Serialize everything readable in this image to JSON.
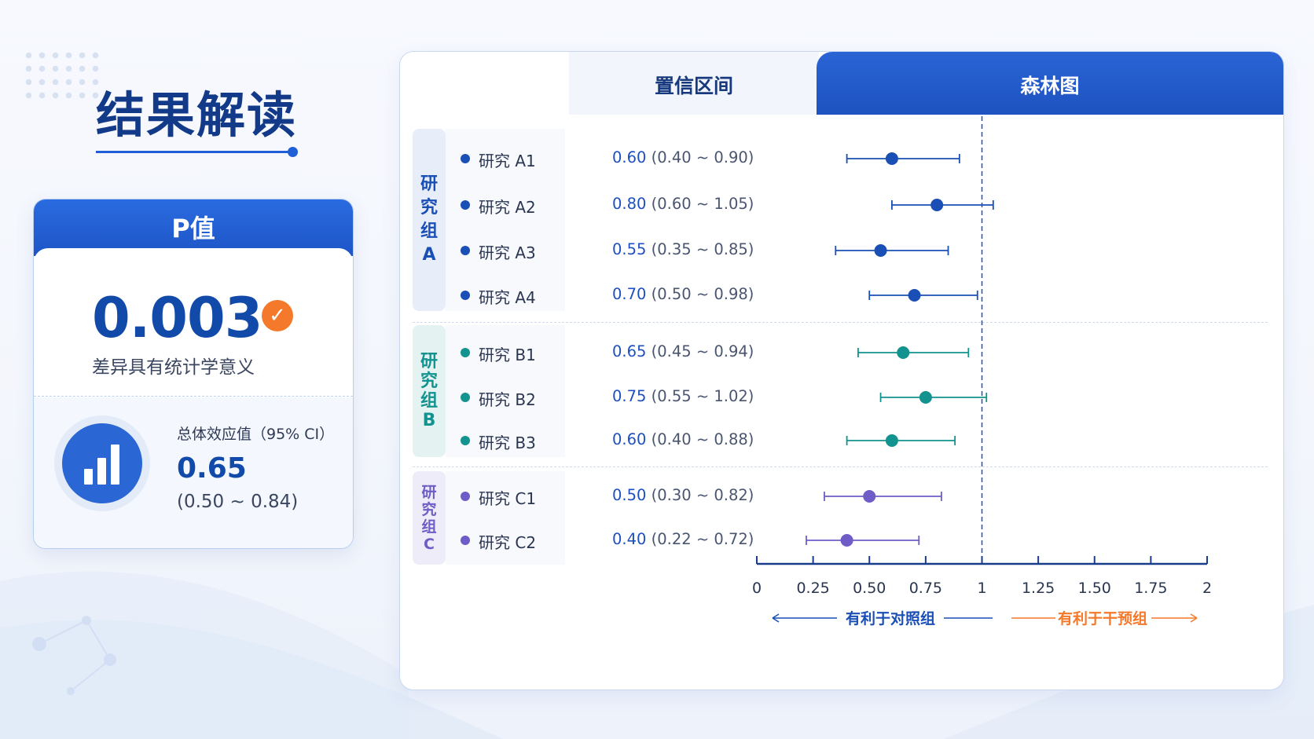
{
  "header": {
    "title": "结果解读"
  },
  "p_card": {
    "title": "P值",
    "p_value": "0.003",
    "significance": "差异具有统计学意义",
    "effect_label": "总体效应值（95% CI）",
    "effect_value": "0.65",
    "effect_ci": "(0.50 ~ 0.84)"
  },
  "tabs": {
    "ci": "置信区间",
    "forest": "森林图"
  },
  "groups": [
    {
      "label": "研究组A",
      "label_chars": [
        "研",
        "究",
        "组",
        "A"
      ],
      "color": "#1a4fb5",
      "bg": "#e8eef9",
      "studies": [
        {
          "name": "研究 A1",
          "estimate": "0.60",
          "ci_text": "(0.40 ~ 0.90)"
        },
        {
          "name": "研究 A2",
          "estimate": "0.80",
          "ci_text": "(0.60 ~ 1.05)"
        },
        {
          "name": "研究 A3",
          "estimate": "0.55",
          "ci_text": "(0.35 ~ 0.85)"
        },
        {
          "name": "研究 A4",
          "estimate": "0.70",
          "ci_text": "(0.50 ~ 0.98)"
        }
      ]
    },
    {
      "label": "研究组B",
      "label_chars": [
        "研",
        "究",
        "组",
        "B"
      ],
      "color": "#13938f",
      "bg": "#e4f3f2",
      "studies": [
        {
          "name": "研究 B1",
          "estimate": "0.65",
          "ci_text": "(0.45 ~ 0.94)"
        },
        {
          "name": "研究 B2",
          "estimate": "0.75",
          "ci_text": "(0.55 ~ 1.02)"
        },
        {
          "name": "研究 B3",
          "estimate": "0.60",
          "ci_text": "(0.40 ~ 0.88)"
        }
      ]
    },
    {
      "label": "研究组C",
      "label_chars": [
        "研",
        "究",
        "组",
        "C"
      ],
      "color": "#6f5cc6",
      "bg": "#eeecf8",
      "studies": [
        {
          "name": "研究 C1",
          "estimate": "0.50",
          "ci_text": "(0.30 ~ 0.82)"
        },
        {
          "name": "研究 C2",
          "estimate": "0.40",
          "ci_text": "(0.22 ~ 0.72)"
        }
      ]
    }
  ],
  "chart_data": {
    "type": "scatter",
    "x": [
      0.6,
      0.8,
      0.55,
      0.7,
      0.65,
      0.75,
      0.6,
      0.5,
      0.4
    ],
    "ci_low": [
      0.4,
      0.6,
      0.35,
      0.5,
      0.45,
      0.55,
      0.4,
      0.3,
      0.22
    ],
    "ci_high": [
      0.9,
      1.05,
      0.85,
      0.98,
      0.94,
      1.02,
      0.88,
      0.82,
      0.72
    ],
    "categories": [
      "研究 A1",
      "研究 A2",
      "研究 A3",
      "研究 A4",
      "研究 B1",
      "研究 B2",
      "研究 B3",
      "研究 C1",
      "研究 C2"
    ],
    "xlim": [
      0,
      2
    ],
    "xticks": [
      "0",
      "0.25",
      "0.50",
      "0.75",
      "1",
      "1.25",
      "1.50",
      "1.75",
      "2"
    ],
    "reference_line": 1,
    "favors_left": "有利于对照组",
    "favors_right": "有利于干预组",
    "favors_left_color": "#1a4fb5",
    "favors_right_color": "#f4792a"
  }
}
